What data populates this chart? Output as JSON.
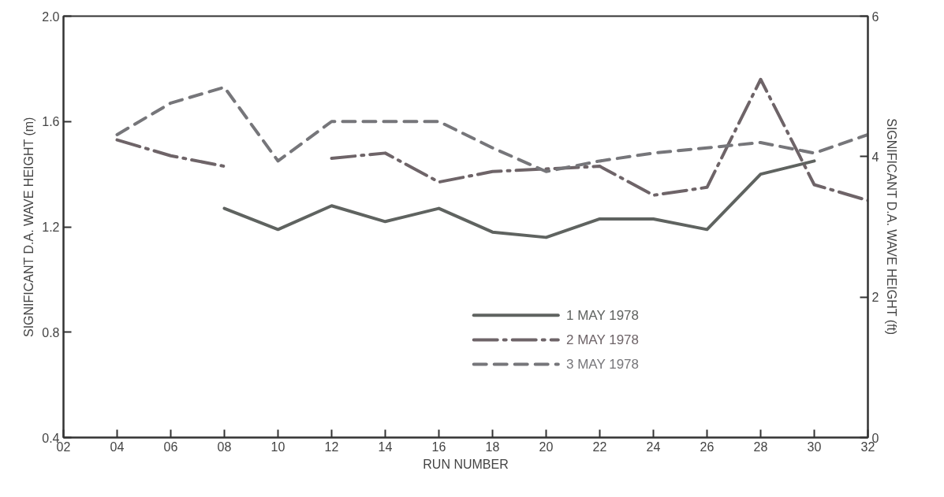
{
  "chart_data": {
    "type": "line",
    "xlabel": "RUN NUMBER",
    "ylabel": "SIGNIFICANT D.A. WAVE HEIGHT (m)",
    "y2label": "SIGNIFICANT D.A. WAVE HEIGHT (ft)",
    "x": [
      4,
      6,
      8,
      10,
      12,
      14,
      16,
      18,
      20,
      22,
      24,
      26,
      28,
      30,
      32
    ],
    "series": [
      {
        "name": "1 MAY 1978",
        "color": "#5f6360",
        "line_style": "solid",
        "values": [
          null,
          null,
          1.27,
          1.19,
          1.28,
          1.22,
          1.27,
          1.18,
          1.16,
          1.23,
          1.23,
          1.19,
          1.4,
          1.45,
          null
        ]
      },
      {
        "name": "2 MAY 1978",
        "color": "#6e6468",
        "line_style": "dashdot",
        "values": [
          1.53,
          1.47,
          1.43,
          null,
          1.46,
          1.48,
          1.37,
          1.41,
          1.42,
          1.43,
          1.32,
          1.35,
          1.76,
          1.36,
          1.3
        ]
      },
      {
        "name": "3 MAY 1978",
        "color": "#76767a",
        "line_style": "dashed",
        "values": [
          1.55,
          1.67,
          1.73,
          1.45,
          1.6,
          1.6,
          1.6,
          1.5,
          1.41,
          1.45,
          1.48,
          1.5,
          1.52,
          1.48,
          1.55
        ]
      }
    ],
    "xlim": [
      2,
      32
    ],
    "xticks": [
      {
        "value": 2,
        "label": "02"
      },
      {
        "value": 4,
        "label": "04"
      },
      {
        "value": 6,
        "label": "06"
      },
      {
        "value": 8,
        "label": "08"
      },
      10,
      12,
      14,
      16,
      18,
      20,
      22,
      24,
      26,
      28,
      30,
      32
    ],
    "ylim": [
      0.4,
      2.0
    ],
    "yticks": [
      0.4,
      0.8,
      1.2,
      1.6,
      {
        "value": 2.0,
        "label": "2.0"
      }
    ],
    "y2lim": [
      0,
      6
    ],
    "y2ticks": [
      0,
      2,
      4,
      6
    ],
    "grid": false,
    "legend": "bottom",
    "marker": "none"
  }
}
